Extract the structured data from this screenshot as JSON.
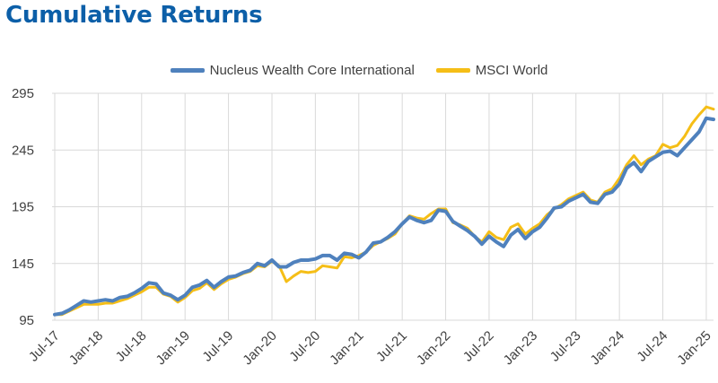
{
  "title": "Cumulative Returns",
  "chart_data": {
    "type": "line",
    "title": "Cumulative Returns",
    "legend_position": "top",
    "grid": true,
    "xlabel": "",
    "ylabel": "",
    "ylim": [
      95,
      295
    ],
    "yticks": [
      95,
      145,
      195,
      245,
      295
    ],
    "xticks": [
      "Jul-17",
      "Jan-18",
      "Jul-18",
      "Jan-19",
      "Jul-19",
      "Jan-20",
      "Jul-20",
      "Jan-21",
      "Jul-21",
      "Jan-22",
      "Jul-22",
      "Jan-23",
      "Jul-23",
      "Jan-24",
      "Jul-24",
      "Jan-25"
    ],
    "x": [
      "Jul-17",
      "Aug-17",
      "Sep-17",
      "Oct-17",
      "Nov-17",
      "Dec-17",
      "Jan-18",
      "Feb-18",
      "Mar-18",
      "Apr-18",
      "May-18",
      "Jun-18",
      "Jul-18",
      "Aug-18",
      "Sep-18",
      "Oct-18",
      "Nov-18",
      "Dec-18",
      "Jan-19",
      "Feb-19",
      "Mar-19",
      "Apr-19",
      "May-19",
      "Jun-19",
      "Jul-19",
      "Aug-19",
      "Sep-19",
      "Oct-19",
      "Nov-19",
      "Dec-19",
      "Jan-20",
      "Feb-20",
      "Mar-20",
      "Apr-20",
      "May-20",
      "Jun-20",
      "Jul-20",
      "Aug-20",
      "Sep-20",
      "Oct-20",
      "Nov-20",
      "Dec-20",
      "Jan-21",
      "Feb-21",
      "Mar-21",
      "Apr-21",
      "May-21",
      "Jun-21",
      "Jul-21",
      "Aug-21",
      "Sep-21",
      "Oct-21",
      "Nov-21",
      "Dec-21",
      "Jan-22",
      "Feb-22",
      "Mar-22",
      "Apr-22",
      "May-22",
      "Jun-22",
      "Jul-22",
      "Aug-22",
      "Sep-22",
      "Oct-22",
      "Nov-22",
      "Dec-22",
      "Jan-23",
      "Feb-23",
      "Mar-23",
      "Apr-23",
      "May-23",
      "Jun-23",
      "Jul-23",
      "Aug-23",
      "Sep-23",
      "Oct-23",
      "Nov-23",
      "Dec-23",
      "Jan-24",
      "Feb-24",
      "Mar-24",
      "Apr-24",
      "May-24",
      "Jun-24",
      "Jul-24",
      "Aug-24",
      "Sep-24",
      "Oct-24",
      "Nov-24",
      "Dec-24",
      "Jan-25",
      "Feb-25"
    ],
    "series": [
      {
        "name": "Nucleus Wealth Core International",
        "color": "#4f81bd",
        "values": [
          100,
          101,
          104,
          108,
          112,
          111,
          112,
          113,
          112,
          115,
          116,
          119,
          123,
          128,
          127,
          119,
          117,
          113,
          117,
          124,
          126,
          130,
          124,
          129,
          133,
          134,
          137,
          139,
          145,
          143,
          148,
          142,
          142,
          146,
          148,
          148,
          149,
          152,
          152,
          148,
          154,
          153,
          150,
          155,
          163,
          164,
          168,
          173,
          180,
          186,
          183,
          181,
          183,
          192,
          191,
          182,
          178,
          174,
          169,
          162,
          169,
          164,
          160,
          170,
          175,
          167,
          173,
          177,
          185,
          194,
          195,
          200,
          203,
          206,
          199,
          198,
          206,
          208,
          215,
          229,
          234,
          226,
          235,
          239,
          243,
          244,
          240,
          247,
          254,
          261,
          273,
          272
        ]
      },
      {
        "name": "MSCI World",
        "color": "#f5be17",
        "values": [
          100,
          100,
          103,
          106,
          109,
          109,
          109,
          110,
          110,
          112,
          114,
          117,
          120,
          124,
          124,
          118,
          116,
          111,
          115,
          121,
          123,
          128,
          122,
          127,
          131,
          133,
          136,
          138,
          143,
          142,
          147,
          143,
          129,
          134,
          138,
          137,
          138,
          143,
          142,
          141,
          151,
          150,
          152,
          155,
          161,
          164,
          167,
          171,
          180,
          187,
          185,
          184,
          189,
          193,
          193,
          181,
          179,
          176,
          169,
          164,
          173,
          168,
          166,
          177,
          180,
          171,
          176,
          180,
          188,
          193,
          197,
          202,
          205,
          208,
          201,
          199,
          208,
          211,
          220,
          232,
          240,
          232,
          237,
          240,
          250,
          247,
          249,
          257,
          268,
          276,
          283,
          281
        ]
      }
    ]
  }
}
